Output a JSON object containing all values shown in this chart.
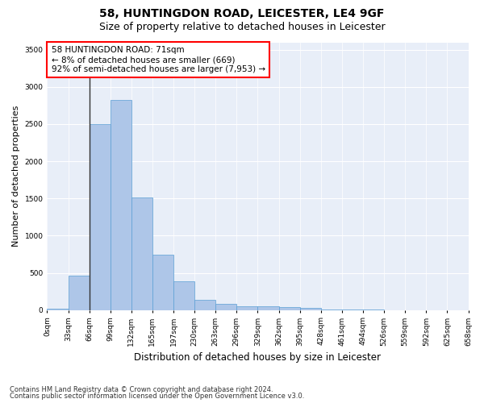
{
  "title": "58, HUNTINGDON ROAD, LEICESTER, LE4 9GF",
  "subtitle": "Size of property relative to detached houses in Leicester",
  "xlabel": "Distribution of detached houses by size in Leicester",
  "ylabel": "Number of detached properties",
  "bar_values": [
    20,
    460,
    2500,
    2820,
    1510,
    740,
    390,
    140,
    80,
    55,
    55,
    45,
    25,
    10,
    5,
    2,
    1,
    0,
    0,
    0
  ],
  "bin_labels": [
    "0sqm",
    "33sqm",
    "66sqm",
    "99sqm",
    "132sqm",
    "165sqm",
    "197sqm",
    "230sqm",
    "263sqm",
    "296sqm",
    "329sqm",
    "362sqm",
    "395sqm",
    "428sqm",
    "461sqm",
    "494sqm",
    "526sqm",
    "559sqm",
    "592sqm",
    "625sqm",
    "658sqm"
  ],
  "bar_color": "#aec6e8",
  "bar_edge_color": "#5a9fd4",
  "vline_x": 2,
  "vline_color": "#333333",
  "annotation_box_text": "58 HUNTINGDON ROAD: 71sqm\n← 8% of detached houses are smaller (669)\n92% of semi-detached houses are larger (7,953) →",
  "annotation_box_facecolor": "white",
  "annotation_box_edgecolor": "red",
  "annotation_fontsize": 7.5,
  "ylim": [
    0,
    3600
  ],
  "yticks": [
    0,
    500,
    1000,
    1500,
    2000,
    2500,
    3000,
    3500
  ],
  "background_color": "#e8eef8",
  "grid_color": "white",
  "footer_line1": "Contains HM Land Registry data © Crown copyright and database right 2024.",
  "footer_line2": "Contains public sector information licensed under the Open Government Licence v3.0.",
  "title_fontsize": 10,
  "subtitle_fontsize": 9,
  "xlabel_fontsize": 8.5,
  "ylabel_fontsize": 8,
  "tick_fontsize": 6.5,
  "footer_fontsize": 6
}
